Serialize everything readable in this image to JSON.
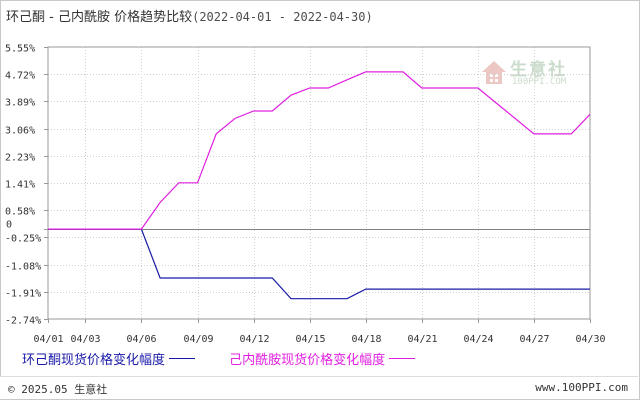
{
  "title": {
    "main": "环己酮 - 己内酰胺 价格趋势比较",
    "range": "(2022-04-01 - 2022-04-30)"
  },
  "watermark": {
    "name": "生意社",
    "url": "100PPI.COM"
  },
  "footer": {
    "copyright": "© 2025.05 生意社",
    "url": "www.100PPI.com"
  },
  "colors": {
    "series1": "#1a1aa8",
    "series2": "#e020e0",
    "axis": "#999999",
    "grid": "#d0d0d0",
    "zero": "#808080"
  },
  "chart_data": {
    "type": "line",
    "title": "环己酮 - 己内酰胺 价格趋势比较",
    "xlabel": "",
    "ylabel": "",
    "x_ticks": [
      "04/01",
      "04/03",
      "04/06",
      "04/09",
      "04/12",
      "04/15",
      "04/18",
      "04/21",
      "04/24",
      "04/27",
      "04/30"
    ],
    "y_ticks": [
      "5.55%",
      "4.72%",
      "3.89%",
      "3.06%",
      "2.23%",
      "1.41%",
      "0.58%",
      "0",
      "-0.25%",
      "-1.08%",
      "-1.91%",
      "-2.74%"
    ],
    "ylim": [
      -2.74,
      5.55
    ],
    "grid": true,
    "legend_position": "bottom",
    "series": [
      {
        "name": "环己酮现货价格变化幅度",
        "points": [
          [
            "04/01",
            0
          ],
          [
            "04/06",
            0
          ],
          [
            "04/07",
            -1.49
          ],
          [
            "04/13",
            -1.49
          ],
          [
            "04/14",
            -2.12
          ],
          [
            "04/17",
            -2.12
          ],
          [
            "04/18",
            -1.83
          ],
          [
            "04/30",
            -1.83
          ]
        ]
      },
      {
        "name": "己内酰胺现货价格变化幅度",
        "points": [
          [
            "04/01",
            0
          ],
          [
            "04/06",
            0
          ],
          [
            "04/07",
            0.81
          ],
          [
            "04/08",
            1.41
          ],
          [
            "04/09",
            1.41
          ],
          [
            "04/10",
            2.9
          ],
          [
            "04/11",
            3.37
          ],
          [
            "04/12",
            3.6
          ],
          [
            "04/13",
            3.6
          ],
          [
            "04/14",
            4.08
          ],
          [
            "04/15",
            4.3
          ],
          [
            "04/16",
            4.3
          ],
          [
            "04/17",
            4.55
          ],
          [
            "04/18",
            4.79
          ],
          [
            "04/20",
            4.79
          ],
          [
            "04/21",
            4.3
          ],
          [
            "04/24",
            4.3
          ],
          [
            "04/26",
            3.37
          ],
          [
            "04/27",
            2.9
          ],
          [
            "04/29",
            2.9
          ],
          [
            "04/30",
            3.5
          ]
        ]
      }
    ]
  }
}
